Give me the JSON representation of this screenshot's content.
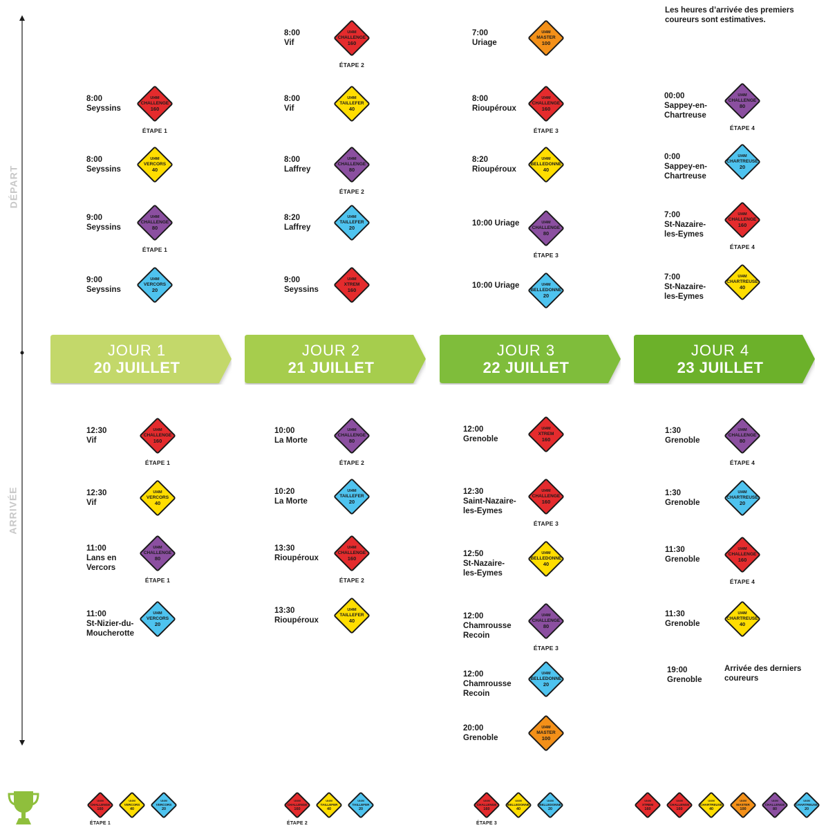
{
  "note": "Les heures d’arrivée des premiers coureurs sont estimatives.",
  "axis": {
    "depart": "DÉPART",
    "arrivee": "ARRIVÉE"
  },
  "colors": {
    "red": "#e42b2d",
    "yellow": "#ffdd00",
    "purple": "#8b4fa0",
    "blue": "#4ec3ef",
    "orange": "#f39019"
  },
  "days": [
    {
      "label": "JOUR 1",
      "date": "20 JUILLET",
      "color": "#c3d86b"
    },
    {
      "label": "JOUR 2",
      "date": "21 JUILLET",
      "color": "#a6cd4e"
    },
    {
      "label": "JOUR 3",
      "date": "22 JUILLET",
      "color": "#7fbd3b"
    },
    {
      "label": "JOUR 4",
      "date": "23 JUILLET",
      "color": "#6cb12a"
    }
  ],
  "departures": [
    [
      {
        "time": "8:00",
        "place": "Seyssins",
        "badge": [
          "UI4M",
          "CHALLENGE",
          "160"
        ],
        "color": "red",
        "etape": "ÉTAPE 1"
      },
      {
        "time": "8:00",
        "place": "Seyssins",
        "badge": [
          "UI4M",
          "VERCORS",
          "40"
        ],
        "color": "yellow",
        "etape": ""
      },
      {
        "time": "9:00",
        "place": "Seyssins",
        "badge": [
          "UI4M",
          "CHALLENGE",
          "80"
        ],
        "color": "purple",
        "etape": "ÉTAPE 1"
      },
      {
        "time": "9:00",
        "place": "Seyssins",
        "badge": [
          "UI4M",
          "VERCORS",
          "20"
        ],
        "color": "blue",
        "etape": ""
      }
    ],
    [
      {
        "time": "8:00",
        "place": "Vif",
        "badge": [
          "UI4M",
          "CHALLENGE",
          "160"
        ],
        "color": "red",
        "etape": "ÉTAPE 2"
      },
      {
        "time": "8:00",
        "place": "Vif",
        "badge": [
          "UI4M",
          "TAILLEFER",
          "40"
        ],
        "color": "yellow",
        "etape": ""
      },
      {
        "time": "8:00",
        "place": "Laffrey",
        "badge": [
          "UI4M",
          "CHALLENGE",
          "80"
        ],
        "color": "purple",
        "etape": "ÉTAPE 2"
      },
      {
        "time": "8:20",
        "place": "Laffrey",
        "badge": [
          "UI4M",
          "TAILLEFER",
          "20"
        ],
        "color": "blue",
        "etape": ""
      },
      {
        "time": "9:00",
        "place": "Seyssins",
        "badge": [
          "UI4M",
          "XTREM",
          "160"
        ],
        "color": "red",
        "etape": ""
      }
    ],
    [
      {
        "time": "7:00",
        "place": "Uriage",
        "badge": [
          "UI4M",
          "MASTER",
          "100"
        ],
        "color": "orange",
        "etape": ""
      },
      {
        "time": "8:00",
        "place": "Rioupéroux",
        "badge": [
          "UI4M",
          "CHALLENGE",
          "160"
        ],
        "color": "red",
        "etape": "ÉTAPE 3"
      },
      {
        "time": "8:20",
        "place": "Rioupéroux",
        "badge": [
          "UI4M",
          "BELLEDONNE",
          "40"
        ],
        "color": "yellow",
        "etape": ""
      },
      {
        "time": "10:00 Uriage",
        "place": "",
        "badge": [
          "UI4M",
          "CHALLENGE",
          "80"
        ],
        "color": "purple",
        "etape": "ÉTAPE 3"
      },
      {
        "time": "10:00 Uriage",
        "place": "",
        "badge": [
          "UI4M",
          "BELLEDONNE",
          "20"
        ],
        "color": "blue",
        "etape": ""
      }
    ],
    [
      {
        "time": "00:00",
        "place": "Sappey-en-",
        "place2": "Chartreuse",
        "badge": [
          "UI4M",
          "CHALLENGE",
          "80"
        ],
        "color": "purple",
        "etape": "ÉTAPE 4"
      },
      {
        "time": "0:00",
        "place": "Sappey-en-",
        "place2": "Chartreuse",
        "badge": [
          "UI4M",
          "CHARTREUSE",
          "20"
        ],
        "color": "blue",
        "etape": ""
      },
      {
        "time": "7:00",
        "place": "St-Nazaire-",
        "place2": "les-Eymes",
        "badge": [
          "UI4M",
          "CHALLENGE",
          "160"
        ],
        "color": "red",
        "etape": "ÉTAPE 4"
      },
      {
        "time": "7:00",
        "place": "St-Nazaire-",
        "place2": "les-Eymes",
        "badge": [
          "UI4M",
          "CHARTREUSE",
          "40"
        ],
        "color": "yellow",
        "etape": ""
      }
    ]
  ],
  "arrivals": [
    [
      {
        "time": "12:30",
        "place": "Vif",
        "badge": [
          "UI4M",
          "CHALLENGE",
          "160"
        ],
        "color": "red",
        "etape": "ÉTAPE 1"
      },
      {
        "time": "12:30",
        "place": "Vif",
        "badge": [
          "UI4M",
          "VERCORS",
          "40"
        ],
        "color": "yellow",
        "etape": ""
      },
      {
        "time": "11:00",
        "place": "Lans en",
        "place2": "Vercors",
        "badge": [
          "UI4M",
          "CHALLENGE",
          "80"
        ],
        "color": "purple",
        "etape": "ÉTAPE 1"
      },
      {
        "time": "11:00",
        "place": "St-Nizier-du-",
        "place2": "Moucherotte",
        "badge": [
          "UI4M",
          "VERCORS",
          "20"
        ],
        "color": "blue",
        "etape": ""
      }
    ],
    [
      {
        "time": "10:00",
        "place": "La Morte",
        "badge": [
          "UI4M",
          "CHALLENGE",
          "80"
        ],
        "color": "purple",
        "etape": "ÉTAPE 2"
      },
      {
        "time": "10:20",
        "place": "La Morte",
        "badge": [
          "UI4M",
          "TAILLEFER",
          "20"
        ],
        "color": "blue",
        "etape": ""
      },
      {
        "time": "13:30",
        "place": "Rioupéroux",
        "badge": [
          "UI4M",
          "CHALLENGE",
          "160"
        ],
        "color": "red",
        "etape": "ÉTAPE 2"
      },
      {
        "time": "13:30",
        "place": "Rioupéroux",
        "badge": [
          "UI4M",
          "TAILLEFER",
          "40"
        ],
        "color": "yellow",
        "etape": ""
      }
    ],
    [
      {
        "time": "12:00",
        "place": "Grenoble",
        "badge": [
          "UI4M",
          "XTREM",
          "160"
        ],
        "color": "red",
        "etape": ""
      },
      {
        "time": "12:30",
        "place": "Saint-Nazaire-",
        "place2": "les-Eymes",
        "badge": [
          "UI4M",
          "CHALLENGE",
          "160"
        ],
        "color": "red",
        "etape": "ÉTAPE 3"
      },
      {
        "time": "12:50",
        "place": "St-Nazaire-",
        "place2": "les-Eymes",
        "badge": [
          "UI4M",
          "BELLEDONNE",
          "40"
        ],
        "color": "yellow",
        "etape": ""
      },
      {
        "time": "12:00",
        "place": "Chamrousse",
        "place2": "Recoin",
        "badge": [
          "UI4M",
          "CHALLENGE",
          "80"
        ],
        "color": "purple",
        "etape": "ÉTAPE 3"
      },
      {
        "time": "12:00",
        "place": "Chamrousse",
        "place2": "Recoin",
        "badge": [
          "UI4M",
          "BELLEDONNE",
          "20"
        ],
        "color": "blue",
        "etape": ""
      },
      {
        "time": "20:00",
        "place": "Grenoble",
        "badge": [
          "UI4M",
          "MASTER",
          "100"
        ],
        "color": "orange",
        "etape": ""
      }
    ],
    [
      {
        "time": "1:30",
        "place": "Grenoble",
        "badge": [
          "UI4M",
          "CHALLENGE",
          "80"
        ],
        "color": "purple",
        "etape": "ÉTAPE 4"
      },
      {
        "time": "1:30",
        "place": "Grenoble",
        "badge": [
          "UI4M",
          "CHARTREUSE",
          "20"
        ],
        "color": "blue",
        "etape": ""
      },
      {
        "time": "11:30",
        "place": "Grenoble",
        "badge": [
          "UI4M",
          "CHALLENGE",
          "160"
        ],
        "color": "red",
        "etape": "ÉTAPE 4"
      },
      {
        "time": "11:30",
        "place": "Grenoble",
        "badge": [
          "UI4M",
          "CHARTREUSE",
          "40"
        ],
        "color": "yellow",
        "etape": ""
      }
    ]
  ],
  "last_arrival": {
    "time": "19:00",
    "place": "Grenoble",
    "text": "Arrivée des derniers",
    "text2": "coureurs"
  },
  "trophy_icon": "trophy-icon",
  "finishers": [
    {
      "etape": "ÉTAPE 1",
      "badges": [
        {
          "badge": [
            "UI4M",
            "CHALLENGE",
            "160"
          ],
          "color": "red"
        },
        {
          "badge": [
            "UI4M",
            "VERCORS",
            "40"
          ],
          "color": "yellow"
        },
        {
          "badge": [
            "UI4M",
            "VERCORS",
            "20"
          ],
          "color": "blue"
        }
      ]
    },
    {
      "etape": "ÉTAPE 2",
      "badges": [
        {
          "badge": [
            "UI4M",
            "CHALLENGE",
            "160"
          ],
          "color": "red"
        },
        {
          "badge": [
            "UI4M",
            "TAILLEFER",
            "40"
          ],
          "color": "yellow"
        },
        {
          "badge": [
            "UI4M",
            "TAILLEFER",
            "20"
          ],
          "color": "blue"
        }
      ]
    },
    {
      "etape": "ÉTAPE 3",
      "badges": [
        {
          "badge": [
            "UI4M",
            "CHALLENGE",
            "160"
          ],
          "color": "red"
        },
        {
          "badge": [
            "UI4M",
            "BELLEDONNE",
            "40"
          ],
          "color": "yellow"
        },
        {
          "badge": [
            "UI4M",
            "BELLEDONNE",
            "20"
          ],
          "color": "blue"
        }
      ]
    },
    {
      "etape": "",
      "badges": [
        {
          "badge": [
            "UI4M",
            "XTREM",
            "160"
          ],
          "color": "red"
        },
        {
          "badge": [
            "UI4M",
            "CHALLENGE",
            "160"
          ],
          "color": "red"
        },
        {
          "badge": [
            "UI4M",
            "CHARTREUSE",
            "40"
          ],
          "color": "yellow"
        },
        {
          "badge": [
            "UI4M",
            "MASTER",
            "100"
          ],
          "color": "orange"
        },
        {
          "badge": [
            "UI4M",
            "CHALLENGE",
            "80"
          ],
          "color": "purple"
        },
        {
          "badge": [
            "UI4M",
            "CHARTREUSE",
            "20"
          ],
          "color": "blue"
        }
      ]
    }
  ]
}
